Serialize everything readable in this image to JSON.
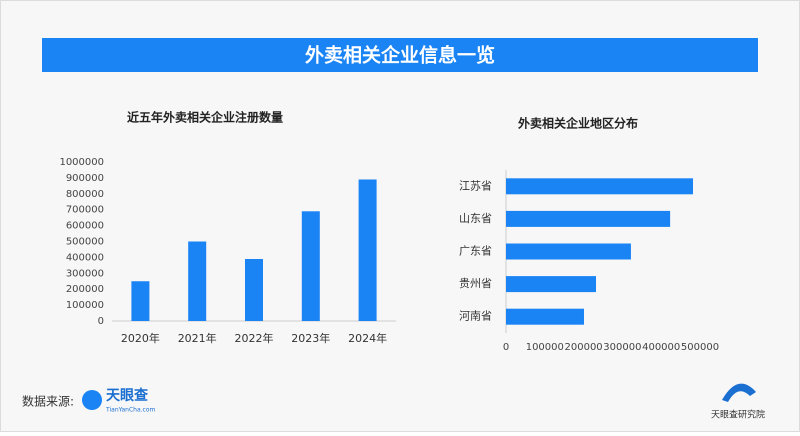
{
  "header": {
    "title": "外卖相关企业信息一览"
  },
  "chart_data": [
    {
      "type": "bar",
      "title": "近五年外卖相关企业注册数量",
      "categories": [
        "2020年",
        "2021年",
        "2022年",
        "2023年",
        "2024年"
      ],
      "values": [
        250000,
        500000,
        390000,
        690000,
        890000
      ],
      "color": "#1a84f5",
      "ylim": [
        0,
        1000000
      ],
      "yticks": [
        0,
        100000,
        200000,
        300000,
        400000,
        500000,
        600000,
        700000,
        800000,
        900000,
        1000000
      ]
    },
    {
      "type": "barh",
      "title": "外卖相关企业地区分布",
      "categories": [
        "江苏省",
        "山东省",
        "广东省",
        "贵州省",
        "河南省"
      ],
      "values": [
        482000,
        423000,
        322000,
        232000,
        201000
      ],
      "color": "#1a84f5",
      "xlim": [
        0,
        500000
      ],
      "xticks": [
        0,
        100000,
        200000,
        300000,
        400000,
        500000
      ]
    }
  ],
  "footer": {
    "source_label": "数据来源:",
    "logo_name": "天眼查",
    "logo_url": "TianYanCha.com",
    "institute": "天眼查研究院"
  }
}
